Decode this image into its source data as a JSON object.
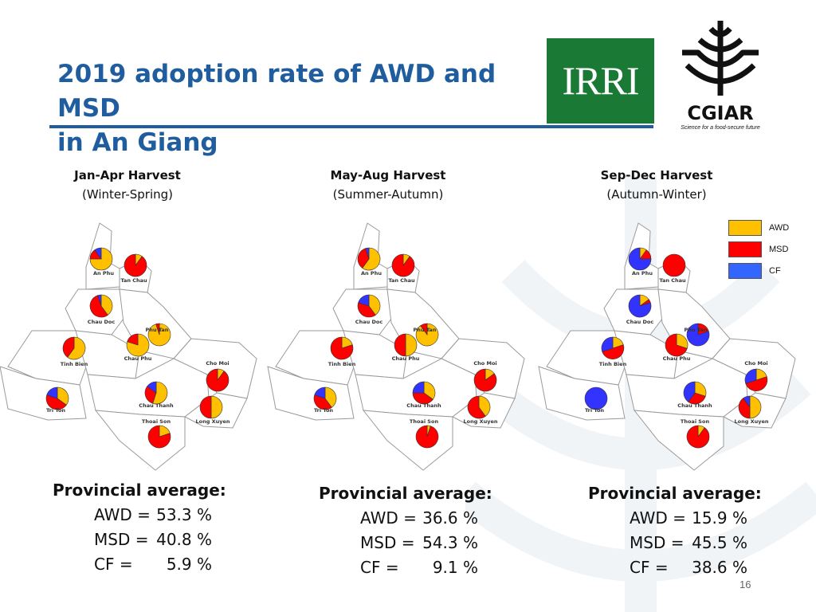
{
  "slide": {
    "title_lines": [
      "2019 adoption rate of AWD and MSD",
      "in An Giang"
    ],
    "page_number": "16"
  },
  "logos": {
    "irri": "IRRI",
    "cgiar_name": "CGIAR",
    "cgiar_tagline": "Science for a food-secure future"
  },
  "colors": {
    "title": "#1f5d9e",
    "awd": "#ffc000",
    "msd": "#ff0000",
    "cf": "#3333ff",
    "irri_green": "#1a7a35"
  },
  "legend": [
    {
      "label": "AWD",
      "color": "#ffc000"
    },
    {
      "label": "MSD",
      "color": "#ff0000"
    },
    {
      "label": "CF",
      "color": "#3366ff"
    }
  ],
  "district_names": [
    "An Phu",
    "Tan Chau",
    "Chau Doc",
    "Phu Tan",
    "Tinh Bien",
    "Chau Phu",
    "Cho Moi",
    "Tri Ton",
    "Chau Thanh",
    "Thoai Son",
    "Long Xuyen"
  ],
  "seasons": [
    {
      "name": "Jan-Apr Harvest",
      "subtitle": "(Winter-Spring)",
      "average_heading": "Provincial average:",
      "averages": [
        {
          "label": "AWD =",
          "value": "53.3 %"
        },
        {
          "label": "MSD =",
          "value": "40.8 %"
        },
        {
          "label": "CF =",
          "value": "5.9 %"
        }
      ],
      "pies": [
        [
          75,
          15,
          10
        ],
        [
          10,
          90,
          0
        ],
        [
          40,
          55,
          5
        ],
        [
          95,
          5,
          0
        ],
        [
          60,
          40,
          0
        ],
        [
          80,
          20,
          0
        ],
        [
          10,
          90,
          0
        ],
        [
          35,
          45,
          20
        ],
        [
          55,
          30,
          15
        ],
        [
          20,
          80,
          0
        ],
        [
          50,
          50,
          0
        ]
      ]
    },
    {
      "name": "May-Aug Harvest",
      "subtitle": "(Summer-Autumn)",
      "average_heading": "Provincial average:",
      "averages": [
        {
          "label": "AWD =",
          "value": "36.6 %"
        },
        {
          "label": "MSD =",
          "value": "54.3 %"
        },
        {
          "label": "CF =",
          "value": "9.1 %"
        }
      ],
      "pies": [
        [
          60,
          35,
          5
        ],
        [
          10,
          90,
          0
        ],
        [
          40,
          40,
          20
        ],
        [
          90,
          10,
          0
        ],
        [
          20,
          80,
          0
        ],
        [
          50,
          50,
          0
        ],
        [
          15,
          85,
          0
        ],
        [
          40,
          40,
          20
        ],
        [
          35,
          40,
          25
        ],
        [
          5,
          95,
          0
        ],
        [
          40,
          60,
          0
        ]
      ]
    },
    {
      "name": "Sep-Dec Harvest",
      "subtitle": "(Autumn-Winter)",
      "average_heading": "Provincial average:",
      "averages": [
        {
          "label": "AWD =",
          "value": "15.9 %"
        },
        {
          "label": "MSD =",
          "value": "45.5 %"
        },
        {
          "label": "CF =",
          "value": "38.6 %"
        }
      ],
      "pies": [
        [
          10,
          15,
          75
        ],
        [
          0,
          100,
          0
        ],
        [
          15,
          5,
          80
        ],
        [
          0,
          20,
          80
        ],
        [
          20,
          50,
          30
        ],
        [
          30,
          70,
          0
        ],
        [
          20,
          50,
          30
        ],
        [
          0,
          0,
          100
        ],
        [
          30,
          30,
          40
        ],
        [
          10,
          90,
          0
        ],
        [
          50,
          40,
          10
        ]
      ]
    }
  ]
}
